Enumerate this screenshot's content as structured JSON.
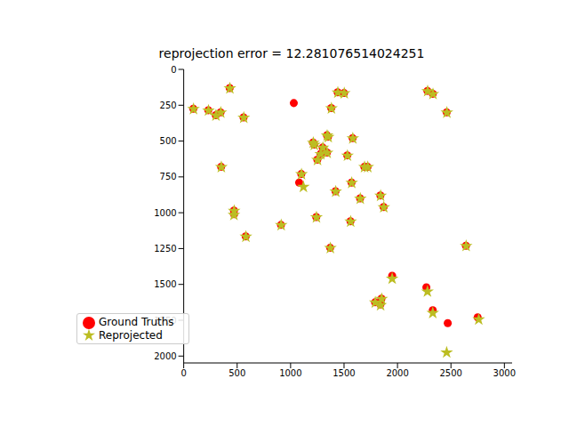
{
  "chart_data": {
    "type": "scatter",
    "title": "reprojection error = 12.281076514024251",
    "xlim": [
      0,
      3072
    ],
    "ylim": [
      2048,
      0
    ],
    "xticks": [
      0,
      500,
      1000,
      1500,
      2000,
      2500,
      3000
    ],
    "yticks": [
      0,
      250,
      500,
      750,
      1000,
      1250,
      1500,
      1750,
      2000
    ],
    "grid": false,
    "legend": "lower left",
    "series": [
      {
        "name": "Ground Truths",
        "color": "#ff0000",
        "marker": "circle",
        "x": [
          90,
          230,
          300,
          345,
          430,
          560,
          1030,
          350,
          470,
          470,
          580,
          910,
          1080,
          1100,
          1210,
          1220,
          1250,
          1280,
          1300,
          1340,
          1340,
          1350,
          1380,
          1440,
          1500,
          1530,
          1570,
          1580,
          1420,
          1650,
          1690,
          1720,
          1840,
          1870,
          1240,
          1560,
          1370,
          1950,
          1790,
          1840,
          1850,
          2270,
          2330,
          2280,
          2330,
          2460,
          2640,
          2470,
          2750
        ],
        "y": [
          275,
          285,
          320,
          300,
          130,
          335,
          235,
          680,
          985,
          1010,
          1165,
          1085,
          790,
          730,
          510,
          525,
          630,
          590,
          545,
          460,
          580,
          470,
          270,
          160,
          165,
          600,
          790,
          480,
          850,
          900,
          680,
          680,
          880,
          960,
          1030,
          1060,
          1245,
          1440,
          1625,
          1640,
          1600,
          1520,
          1680,
          150,
          170,
          300,
          1230,
          1770,
          1730
        ]
      },
      {
        "name": "Reprojected",
        "color": "#bcbd22",
        "marker": "star",
        "x": [
          92,
          232,
          302,
          347,
          432,
          562,
          352,
          472,
          470,
          582,
          912,
          1120,
          1102,
          1212,
          1222,
          1252,
          1282,
          1302,
          1342,
          1342,
          1352,
          1382,
          1442,
          1502,
          1532,
          1572,
          1582,
          1422,
          1652,
          1692,
          1722,
          1842,
          1872,
          1242,
          1562,
          1372,
          1950,
          1792,
          1842,
          1852,
          2280,
          2330,
          2282,
          2332,
          2462,
          2642,
          2460,
          2760
        ],
        "y": [
          277,
          287,
          322,
          302,
          132,
          337,
          682,
          987,
          1015,
          1167,
          1087,
          820,
          732,
          512,
          527,
          632,
          592,
          547,
          462,
          582,
          472,
          272,
          162,
          167,
          602,
          792,
          482,
          852,
          902,
          682,
          682,
          882,
          962,
          1032,
          1062,
          1247,
          1460,
          1627,
          1645,
          1602,
          1550,
          1700,
          152,
          172,
          302,
          1232,
          1975,
          1745
        ]
      }
    ]
  }
}
